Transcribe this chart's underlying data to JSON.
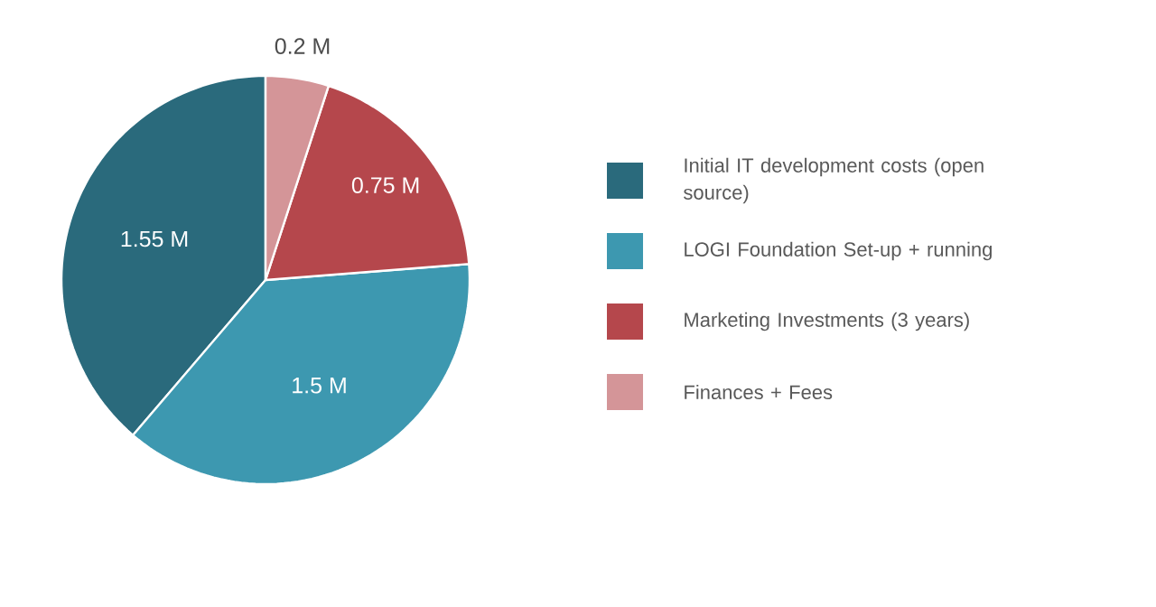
{
  "chart_data": {
    "type": "pie",
    "categories": [
      "Initial IT development costs (open source)",
      "LOGI Foundation Set-up + running",
      "Marketing Investments (3 years)",
      "Finances + Fees"
    ],
    "values": [
      1.55,
      1.5,
      0.75,
      0.2
    ],
    "value_labels": [
      "1.55 M",
      "1.5 M",
      "0.75 M",
      "0.2 M"
    ],
    "colors": [
      "#2a6a7c",
      "#3d98b0",
      "#b5474c",
      "#d49598"
    ],
    "legend": "right"
  }
}
